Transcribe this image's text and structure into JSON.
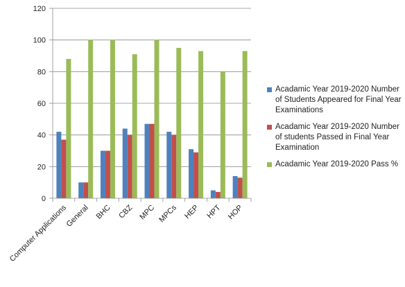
{
  "chart_data": {
    "type": "bar",
    "categories": [
      "Computer Applications",
      "General",
      "BHC",
      "CBZ",
      "MPC",
      "MPCs",
      "HEP",
      "HPT",
      "HOP"
    ],
    "series": [
      {
        "name": "Acadamic Year 2019-2020 Number of Students Appeared for Final Year Examinations",
        "color": "#4f81bd",
        "values": [
          42,
          10,
          30,
          44,
          47,
          42,
          31,
          5,
          14
        ]
      },
      {
        "name": "Acadamic Year 2019-2020 Number of students Passed in Final Year Examination",
        "color": "#c0504d",
        "values": [
          37,
          10,
          30,
          40,
          47,
          40,
          29,
          4,
          13
        ]
      },
      {
        "name": "Acadamic Year 2019-2020 Pass %",
        "color": "#9bbb59",
        "values": [
          88,
          100,
          100,
          91,
          100,
          95,
          93,
          80,
          93
        ]
      }
    ],
    "ylim": [
      0,
      120
    ],
    "yticks": [
      0,
      20,
      40,
      60,
      80,
      100,
      120
    ],
    "grid": true,
    "legend_position": "right"
  }
}
